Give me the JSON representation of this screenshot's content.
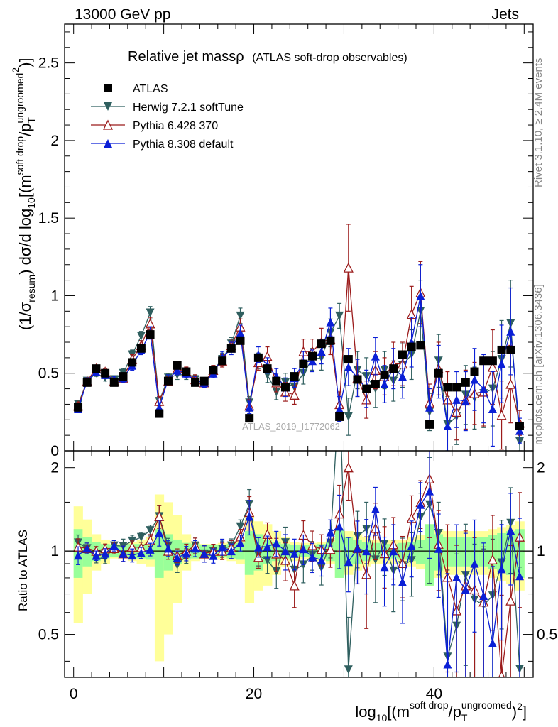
{
  "header": {
    "left": "13000 GeV pp",
    "right": "Jets"
  },
  "side_text": {
    "rivet": "Rivet 3.1.10, ≥ 2.4M events",
    "mcplots": "mcplots.cern.ch [arXiv:1306.3436]"
  },
  "watermark": "ATLAS_2019_I1772062",
  "main_title": {
    "main": "Relative jet massρ",
    "sub": "(ATLAS soft-drop observables)"
  },
  "y_axis_label": "(1/σ_resum) dσ/d log10[(m^soft drop/pT^ungroomed)^2]",
  "ratio_y_label": "Ratio to ATLAS",
  "x_axis_label": "log10[(m^soft drop/pT^ungroomed)^2]",
  "colors": {
    "data": "#000000",
    "herwig": "#2f5f5f",
    "py6": "#9b1b1b",
    "py8": "#0a1fd6",
    "band_inner": "#99ff99",
    "band_outer": "#ffff99"
  },
  "chart_data": {
    "type": "line",
    "x": [
      0.5,
      1.5,
      2.5,
      3.5,
      4.5,
      5.5,
      6.5,
      7.5,
      8.5,
      9.5,
      10.5,
      11.5,
      12.5,
      13.5,
      14.5,
      15.5,
      16.5,
      17.5,
      18.5,
      19.5,
      20.5,
      21.5,
      22.5,
      23.5,
      24.5,
      25.5,
      26.5,
      27.5,
      28.5,
      29.5,
      30.5,
      31.5,
      32.5,
      33.5,
      34.5,
      35.5,
      36.5,
      37.5,
      38.5,
      39.5,
      40.5,
      41.5,
      42.5,
      43.5,
      44.5,
      45.5,
      46.5,
      47.5,
      48.5,
      49.5
    ],
    "xlim": [
      -1,
      51
    ],
    "ylim": [
      0,
      2.75
    ],
    "ratio_ylim": [
      0.35,
      2.3
    ],
    "ratio_log_scale": true,
    "x_ticks": [
      0,
      20,
      40
    ],
    "y_ticks": [
      0,
      0.5,
      1,
      1.5,
      2,
      2.5
    ],
    "ratio_ticks": [
      0.5,
      1,
      2
    ],
    "legend_position": "top-left",
    "series": [
      {
        "name": "ATLAS",
        "key": "data",
        "values": [
          0.28,
          0.44,
          0.53,
          0.5,
          0.44,
          0.48,
          0.57,
          0.66,
          0.75,
          0.24,
          0.45,
          0.55,
          0.51,
          0.44,
          0.45,
          0.52,
          0.58,
          0.66,
          0.71,
          0.21,
          0.6,
          0.53,
          0.45,
          0.41,
          0.48,
          0.56,
          0.61,
          0.69,
          0.71,
          0.22,
          0.59,
          0.46,
          0.4,
          0.43,
          0.49,
          0.53,
          0.62,
          0.67,
          0.68,
          0.17,
          0.5,
          0.41,
          0.41,
          0.44,
          0.51,
          0.58,
          0.58,
          0.65,
          0.65,
          0.16
        ],
        "errors": [
          0.008,
          0.01,
          0.01,
          0.01,
          0.01,
          0.01,
          0.01,
          0.01,
          0.01,
          0.008,
          0.01,
          0.01,
          0.01,
          0.01,
          0.01,
          0.01,
          0.01,
          0.01,
          0.01,
          0.008,
          0.01,
          0.01,
          0.01,
          0.01,
          0.01,
          0.01,
          0.01,
          0.01,
          0.01,
          0.008,
          0.01,
          0.01,
          0.01,
          0.01,
          0.01,
          0.01,
          0.01,
          0.01,
          0.01,
          0.008,
          0.01,
          0.01,
          0.01,
          0.01,
          0.01,
          0.01,
          0.01,
          0.01,
          0.01,
          0.008
        ]
      },
      {
        "name": "Herwig 7.2.1 softTune",
        "key": "herwig",
        "values": [
          0.3,
          0.45,
          0.5,
          0.47,
          0.46,
          0.5,
          0.62,
          0.74,
          0.89,
          0.32,
          0.47,
          0.49,
          0.49,
          0.46,
          0.44,
          0.52,
          0.59,
          0.69,
          0.87,
          0.31,
          0.58,
          0.49,
          0.38,
          0.44,
          0.41,
          0.5,
          0.59,
          0.6,
          0.76,
          0.87,
          0.22,
          0.52,
          0.48,
          0.4,
          0.52,
          0.45,
          0.55,
          0.62,
          0.9,
          0.25,
          0.58,
          0.17,
          0.22,
          0.36,
          0.34,
          0.37,
          0.4,
          0.59,
          0.82,
          0.06
        ],
        "errors": [
          0.02,
          0.02,
          0.02,
          0.02,
          0.02,
          0.03,
          0.03,
          0.03,
          0.04,
          0.03,
          0.03,
          0.03,
          0.03,
          0.03,
          0.03,
          0.03,
          0.04,
          0.04,
          0.05,
          0.04,
          0.05,
          0.05,
          0.05,
          0.06,
          0.06,
          0.07,
          0.07,
          0.08,
          0.09,
          0.08,
          0.12,
          0.12,
          0.12,
          0.12,
          0.12,
          0.13,
          0.14,
          0.16,
          0.2,
          0.12,
          0.17,
          0.18,
          0.18,
          0.19,
          0.2,
          0.22,
          0.24,
          0.25,
          0.28,
          0.08
        ]
      },
      {
        "name": "Pythia 6.428 370",
        "key": "py6",
        "values": [
          0.29,
          0.45,
          0.53,
          0.51,
          0.45,
          0.47,
          0.59,
          0.68,
          0.82,
          0.32,
          0.45,
          0.53,
          0.51,
          0.46,
          0.44,
          0.52,
          0.58,
          0.68,
          0.8,
          0.29,
          0.57,
          0.61,
          0.44,
          0.38,
          0.36,
          0.64,
          0.64,
          0.7,
          0.72,
          0.3,
          1.18,
          0.47,
          0.33,
          0.52,
          0.48,
          0.56,
          0.56,
          0.88,
          1.02,
          0.31,
          0.53,
          0.33,
          0.25,
          0.33,
          0.37,
          0.38,
          0.54,
          0.23,
          0.43,
          0.18
        ],
        "errors": [
          0.02,
          0.02,
          0.02,
          0.02,
          0.02,
          0.03,
          0.03,
          0.03,
          0.04,
          0.03,
          0.03,
          0.03,
          0.03,
          0.03,
          0.03,
          0.03,
          0.04,
          0.04,
          0.05,
          0.04,
          0.05,
          0.06,
          0.06,
          0.06,
          0.06,
          0.08,
          0.08,
          0.09,
          0.1,
          0.08,
          0.28,
          0.12,
          0.12,
          0.12,
          0.12,
          0.14,
          0.14,
          0.18,
          0.2,
          0.12,
          0.17,
          0.18,
          0.18,
          0.19,
          0.2,
          0.22,
          0.24,
          0.22,
          0.25,
          0.08
        ]
      },
      {
        "name": "Pythia 8.308 default",
        "key": "py8",
        "values": [
          0.27,
          0.45,
          0.51,
          0.49,
          0.46,
          0.47,
          0.55,
          0.65,
          0.76,
          0.28,
          0.46,
          0.52,
          0.5,
          0.45,
          0.44,
          0.5,
          0.6,
          0.66,
          0.76,
          0.28,
          0.62,
          0.55,
          0.48,
          0.41,
          0.47,
          0.57,
          0.58,
          0.64,
          0.83,
          0.27,
          0.54,
          0.47,
          0.4,
          0.61,
          0.43,
          0.53,
          0.48,
          0.7,
          1.0,
          0.28,
          0.51,
          0.16,
          0.33,
          0.32,
          0.46,
          0.4,
          0.27,
          0.56,
          0.77,
          0.13
        ],
        "errors": [
          0.02,
          0.02,
          0.02,
          0.02,
          0.02,
          0.03,
          0.03,
          0.03,
          0.04,
          0.03,
          0.03,
          0.03,
          0.03,
          0.03,
          0.03,
          0.03,
          0.04,
          0.04,
          0.05,
          0.04,
          0.05,
          0.05,
          0.05,
          0.06,
          0.06,
          0.07,
          0.07,
          0.08,
          0.09,
          0.08,
          0.12,
          0.12,
          0.12,
          0.12,
          0.12,
          0.13,
          0.14,
          0.16,
          0.2,
          0.12,
          0.17,
          0.18,
          0.18,
          0.19,
          0.2,
          0.22,
          0.24,
          0.25,
          0.28,
          0.08
        ]
      }
    ],
    "ratio_band_inner": [
      0.2,
      0.12,
      0.08,
      0.06,
      0.05,
      0.05,
      0.06,
      0.06,
      0.07,
      0.2,
      0.15,
      0.1,
      0.07,
      0.06,
      0.05,
      0.05,
      0.05,
      0.06,
      0.07,
      0.18,
      0.15,
      0.1,
      0.08,
      0.06,
      0.05,
      0.05,
      0.05,
      0.06,
      0.08,
      0.2,
      0.12,
      0.1,
      0.08,
      0.07,
      0.06,
      0.06,
      0.07,
      0.08,
      0.1,
      0.25,
      0.15,
      0.12,
      0.12,
      0.12,
      0.12,
      0.12,
      0.14,
      0.16,
      0.18,
      0.2
    ],
    "ratio_band_outer": [
      0.45,
      0.3,
      0.15,
      0.1,
      0.06,
      0.06,
      0.08,
      0.1,
      0.12,
      0.6,
      0.5,
      0.35,
      0.15,
      0.08,
      0.06,
      0.06,
      0.07,
      0.08,
      0.1,
      0.35,
      0.28,
      0.25,
      0.18,
      0.12,
      0.08,
      0.07,
      0.07,
      0.08,
      0.1,
      0.2,
      0.18,
      0.15,
      0.12,
      0.1,
      0.1,
      0.1,
      0.1,
      0.12,
      0.14,
      0.25,
      0.2,
      0.18,
      0.18,
      0.18,
      0.18,
      0.18,
      0.2,
      0.22,
      0.24,
      0.28
    ]
  }
}
